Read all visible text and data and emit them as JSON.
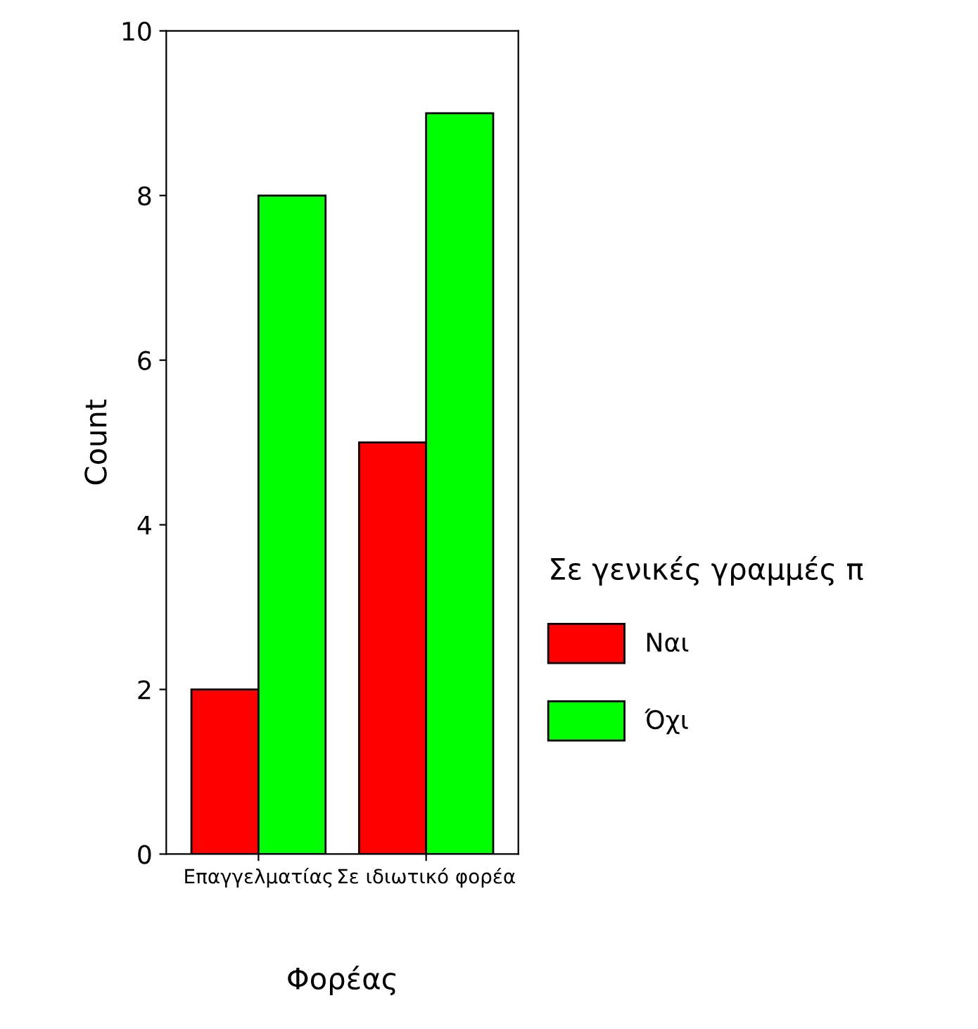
{
  "chart_data": {
    "type": "bar",
    "xlabel": "Φορέας",
    "ylabel": "Count",
    "legend_title": "Σε γενικές γραμμές π",
    "categories": [
      "Επαγγελματίας",
      "Σε ιδιωτικό φορέα"
    ],
    "series": [
      {
        "name": "Ναι",
        "color": "#ff0000",
        "values": [
          2,
          5
        ]
      },
      {
        "name": "Όχι",
        "color": "#00ff00",
        "values": [
          8,
          9
        ]
      }
    ],
    "ylim": [
      0,
      10
    ],
    "yticks": [
      0,
      2,
      4,
      6,
      8,
      10
    ],
    "grid": false,
    "legend": "right"
  }
}
